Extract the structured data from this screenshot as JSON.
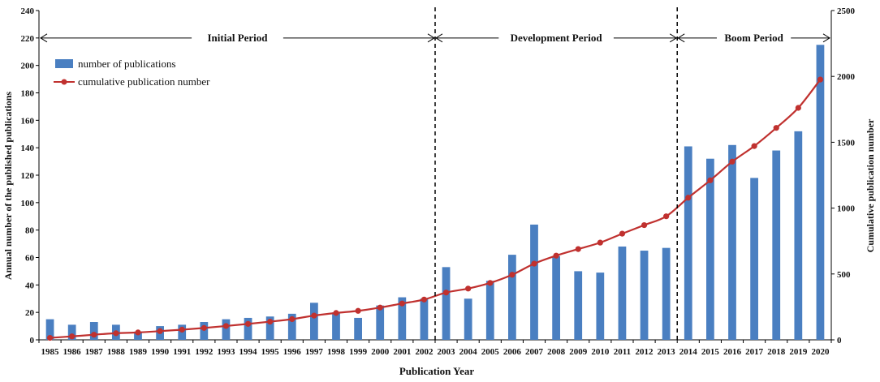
{
  "chart_data": {
    "type": "bar",
    "title": "",
    "xlabel": "Publication Year",
    "ylabel": "Annual number of the published publications",
    "y2label": "Cumulative publication number",
    "ylim": [
      0,
      240
    ],
    "y2lim": [
      0,
      2500
    ],
    "yticks": [
      0,
      20,
      40,
      60,
      80,
      100,
      120,
      140,
      160,
      180,
      200,
      220,
      240
    ],
    "y2ticks": [
      0,
      500,
      1000,
      1500,
      2000,
      2500
    ],
    "categories": [
      "1985",
      "1986",
      "1987",
      "1988",
      "1989",
      "1990",
      "1991",
      "1992",
      "1993",
      "1994",
      "1995",
      "1996",
      "1997",
      "1998",
      "1999",
      "2000",
      "2001",
      "2002",
      "2003",
      "2004",
      "2005",
      "2006",
      "2007",
      "2008",
      "2009",
      "2010",
      "2011",
      "2012",
      "2013",
      "2014",
      "2015",
      "2016",
      "2017",
      "2018",
      "2019",
      "2020"
    ],
    "series": [
      {
        "name": "number of publications",
        "type": "bar",
        "axis": "left",
        "color": "#4a7fc1",
        "values": [
          15,
          11,
          13,
          11,
          6,
          10,
          11,
          13,
          15,
          16,
          17,
          19,
          27,
          20,
          16,
          25,
          31,
          30,
          53,
          30,
          43,
          62,
          84,
          61,
          50,
          49,
          68,
          65,
          67,
          141,
          132,
          142,
          118,
          138,
          152,
          215
        ]
      },
      {
        "name": "cumulative publication number",
        "type": "line",
        "axis": "right",
        "color": "#c0312f",
        "values": [
          15,
          26,
          39,
          50,
          56,
          66,
          77,
          90,
          105,
          121,
          138,
          157,
          184,
          204,
          220,
          245,
          276,
          306,
          359,
          389,
          432,
          494,
          578,
          639,
          689,
          738,
          806,
          871,
          938,
          1079,
          1211,
          1353,
          1471,
          1609,
          1761,
          1976
        ]
      }
    ],
    "periods": [
      {
        "label": "Initial Period",
        "start_year": "1985",
        "end_year": "2002"
      },
      {
        "label": "Development Period",
        "start_year": "2003",
        "end_year": "2013"
      },
      {
        "label": "Boom Period",
        "start_year": "2014",
        "end_year": "2020"
      }
    ],
    "legend_position": "top-left"
  }
}
